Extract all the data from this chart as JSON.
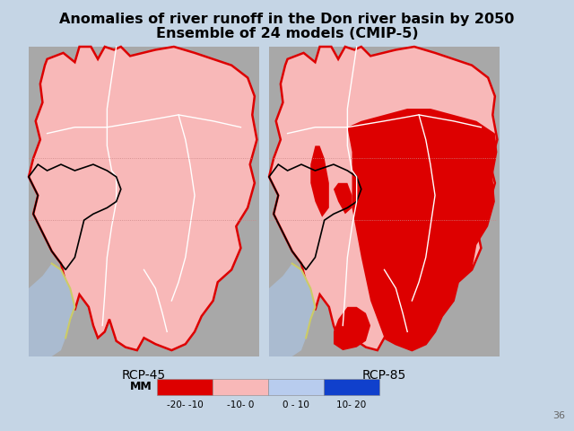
{
  "title_line1": "Anomalies of river runoff in the Don river basin by 2050",
  "title_line2": "Ensemble of 24 models (CMIP-5)",
  "label_left": "RCP-45",
  "label_right": "RCP-85",
  "legend_label": "MM",
  "legend_colors": [
    "#dd0000",
    "#f8b8b8",
    "#b8ccee",
    "#1040cc"
  ],
  "legend_ticks": [
    "-20- -10",
    "-10- 0",
    "0 - 10",
    "10- 20"
  ],
  "bg_color": "#c5d5e5",
  "map_bg": "#a8a8a8",
  "sea_color": "#aabbd0",
  "slide_number": "36",
  "title_fontsize": 11.5,
  "label_fontsize": 10,
  "legend_fontsize": 8
}
